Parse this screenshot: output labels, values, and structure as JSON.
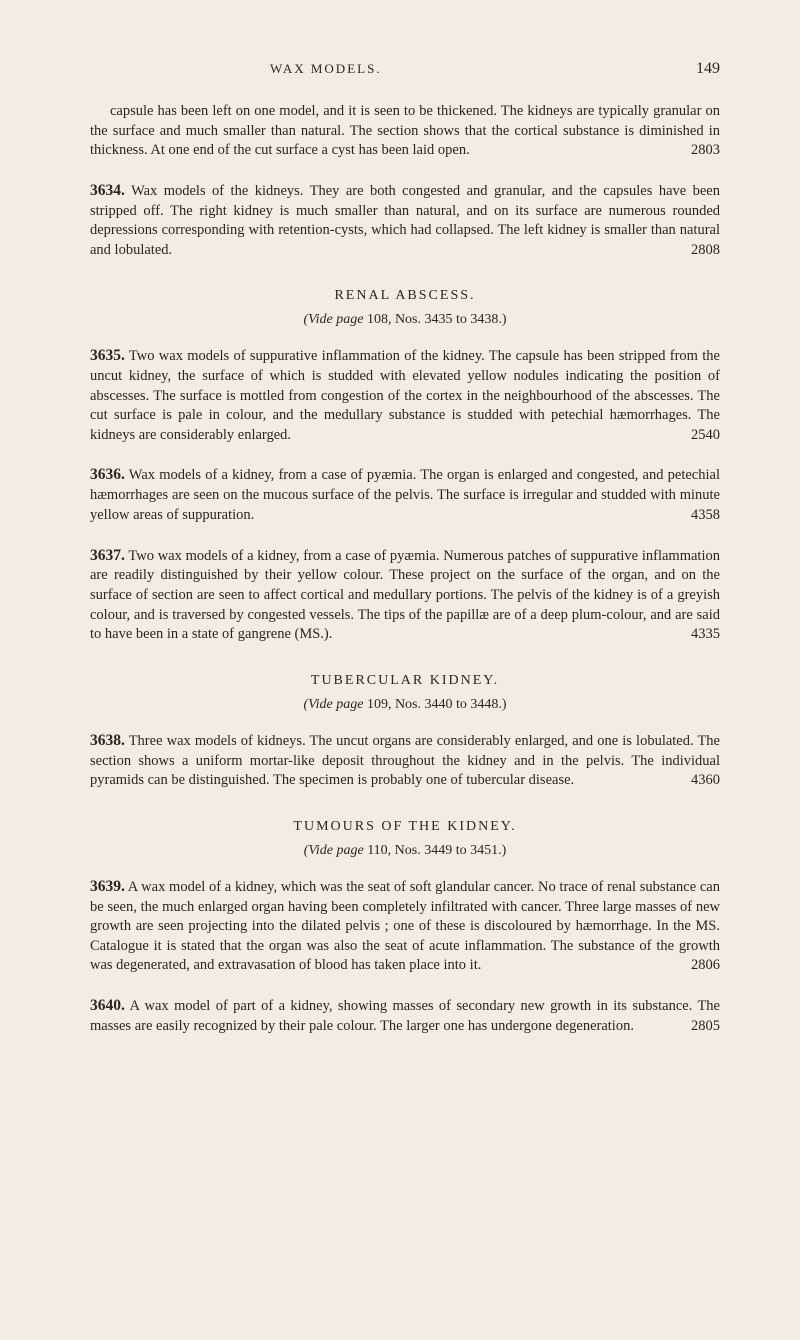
{
  "page": {
    "running_head": "WAX MODELS.",
    "number": "149"
  },
  "opening_para": {
    "text": "capsule has been left on one model, and it is seen to be thickened. The kidneys are typically granular on the surface and much smaller than natural. The section shows that the cortical substance is diminished in thickness. At one end of the cut surface a cyst has been laid open.",
    "ref": "2803"
  },
  "entries": [
    {
      "num": "3634.",
      "text": "Wax models of the kidneys. They are both congested and granular, and the capsules have been stripped off. The right kidney is much smaller than natural, and on its surface are numerous rounded depressions corresponding with retention-cysts, which had collapsed. The left kidney is smaller than natural and lobulated.",
      "ref": "2808"
    }
  ],
  "section1": {
    "heading": "RENAL ABSCESS.",
    "vide_pre": "(Vide page ",
    "vide_mid": "108, Nos. 3435 to 3438.)",
    "entries": [
      {
        "num": "3635.",
        "text": "Two wax models of suppurative inflammation of the kidney. The capsule has been stripped from the uncut kidney, the surface of which is studded with elevated yellow nodules indicating the position of abscesses. The surface is mottled from congestion of the cortex in the neighbourhood of the abscesses. The cut surface is pale in colour, and the medullary substance is studded with petechial hæmorrhages. The kidneys are considerably enlarged.",
        "ref": "2540"
      },
      {
        "num": "3636.",
        "text": "Wax models of a kidney, from a case of pyæmia. The organ is enlarged and congested, and petechial hæmorrhages are seen on the mucous surface of the pelvis. The surface is irregular and studded with minute yellow areas of suppuration.",
        "ref": "4358"
      },
      {
        "num": "3637.",
        "text": "Two wax models of a kidney, from a case of pyæmia. Numerous patches of suppurative inflammation are readily distinguished by their yellow colour. These project on the surface of the organ, and on the surface of section are seen to affect cortical and medullary portions. The pelvis of the kidney is of a greyish colour, and is traversed by congested vessels. The tips of the papillæ are of a deep plum-colour, and are said to have been in a state of gangrene (MS.).",
        "ref": "4335"
      }
    ]
  },
  "section2": {
    "heading": "TUBERCULAR KIDNEY.",
    "vide_pre": "(Vide page ",
    "vide_mid": "109, Nos. 3440 to 3448.)",
    "entries": [
      {
        "num": "3638.",
        "text": "Three wax models of kidneys. The uncut organs are considerably enlarged, and one is lobulated. The section shows a uniform mortar-like deposit throughout the kidney and in the pelvis. The individual pyramids can be distinguished. The specimen is probably one of tubercular disease.",
        "ref": "4360"
      }
    ]
  },
  "section3": {
    "heading": "TUMOURS OF THE KIDNEY.",
    "vide_pre": "(Vide page ",
    "vide_mid": "110, Nos. 3449 to 3451.)",
    "entries": [
      {
        "num": "3639.",
        "text": "A wax model of a kidney, which was the seat of soft glandular cancer. No trace of renal substance can be seen, the much enlarged organ having been completely infiltrated with cancer. Three large masses of new growth are seen projecting into the dilated pelvis ; one of these is discoloured by hæmorrhage. In the MS. Catalogue it is stated that the organ was also the seat of acute inflammation. The substance of the growth was degenerated, and extravasation of blood has taken place into it.",
        "ref": "2806"
      },
      {
        "num": "3640.",
        "text": "A wax model of part of a kidney, showing masses of secondary new growth in its substance. The masses are easily recognized by their pale colour. The larger one has undergone degeneration.",
        "ref": "2805"
      }
    ]
  }
}
